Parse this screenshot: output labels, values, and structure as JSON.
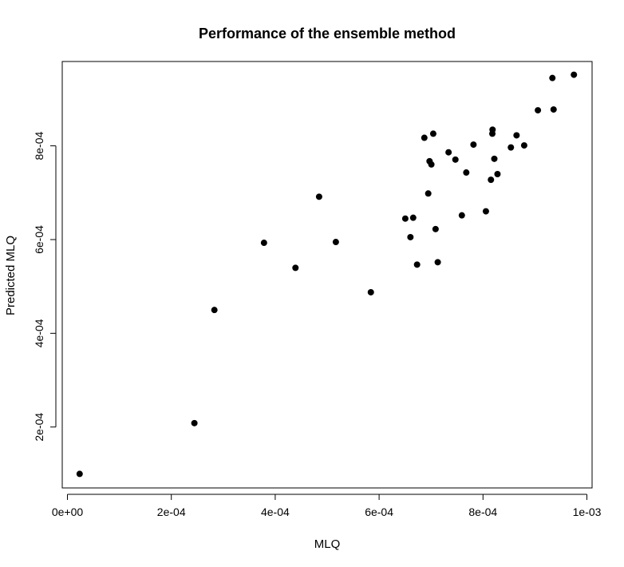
{
  "chart_data": {
    "type": "scatter",
    "title": "Performance of the ensemble method",
    "xlabel": "MLQ",
    "ylabel": "Predicted MLQ",
    "xlim": [
      -1e-05,
      0.00101
    ],
    "ylim": [
      7e-05,
      0.00098
    ],
    "x_ticks": [
      0,
      0.0002,
      0.0004,
      0.0006,
      0.0008,
      0.001
    ],
    "x_tick_labels": [
      "0e+00",
      "2e-04",
      "4e-04",
      "6e-04",
      "8e-04",
      "1e-03"
    ],
    "y_ticks": [
      0.0002,
      0.0004,
      0.0006,
      0.0008
    ],
    "y_tick_labels": [
      "2e-04",
      "4e-04",
      "6e-04",
      "8e-04"
    ],
    "grid": false,
    "marker_color": "#000000",
    "points": [
      {
        "x": 2.35e-05,
        "y": 0.0001
      },
      {
        "x": 0.0002444,
        "y": 0.0002083
      },
      {
        "x": 0.0002829,
        "y": 0.0004497
      },
      {
        "x": 0.0003784,
        "y": 0.0005931
      },
      {
        "x": 0.000439,
        "y": 0.0005397
      },
      {
        "x": 0.0004845,
        "y": 0.0006914
      },
      {
        "x": 0.0005167,
        "y": 0.0005948
      },
      {
        "x": 0.0005841,
        "y": 0.0004876
      },
      {
        "x": 0.0006504,
        "y": 0.0006448
      },
      {
        "x": 0.0006603,
        "y": 0.0006052
      },
      {
        "x": 0.0006656,
        "y": 0.0006466
      },
      {
        "x": 0.0006731,
        "y": 0.0005466
      },
      {
        "x": 0.0006871,
        "y": 0.0008172
      },
      {
        "x": 0.0006946,
        "y": 0.0006983
      },
      {
        "x": 0.0006971,
        "y": 0.0007672
      },
      {
        "x": 0.0007006,
        "y": 0.0007603
      },
      {
        "x": 0.0007042,
        "y": 0.0008259
      },
      {
        "x": 0.0007087,
        "y": 0.0006224
      },
      {
        "x": 0.0007129,
        "y": 0.0005517
      },
      {
        "x": 0.0007337,
        "y": 0.0007862
      },
      {
        "x": 0.0007469,
        "y": 0.0007707
      },
      {
        "x": 0.0007593,
        "y": 0.0006517
      },
      {
        "x": 0.0007678,
        "y": 0.0007431
      },
      {
        "x": 0.0007817,
        "y": 0.0008026
      },
      {
        "x": 0.0008056,
        "y": 0.0006603
      },
      {
        "x": 0.0008153,
        "y": 0.0007276
      },
      {
        "x": 0.000818,
        "y": 0.0008259
      },
      {
        "x": 0.0008184,
        "y": 0.0008345
      },
      {
        "x": 0.0008218,
        "y": 0.0007724
      },
      {
        "x": 0.0008279,
        "y": 0.0007397
      },
      {
        "x": 0.0008537,
        "y": 0.0007966
      },
      {
        "x": 0.0008646,
        "y": 0.0008224
      },
      {
        "x": 0.0008793,
        "y": 0.0008009
      },
      {
        "x": 0.0009057,
        "y": 0.0008759
      },
      {
        "x": 0.0009336,
        "y": 0.0009448
      },
      {
        "x": 0.0009359,
        "y": 0.0008776
      },
      {
        "x": 0.000975,
        "y": 0.0009517
      }
    ]
  }
}
